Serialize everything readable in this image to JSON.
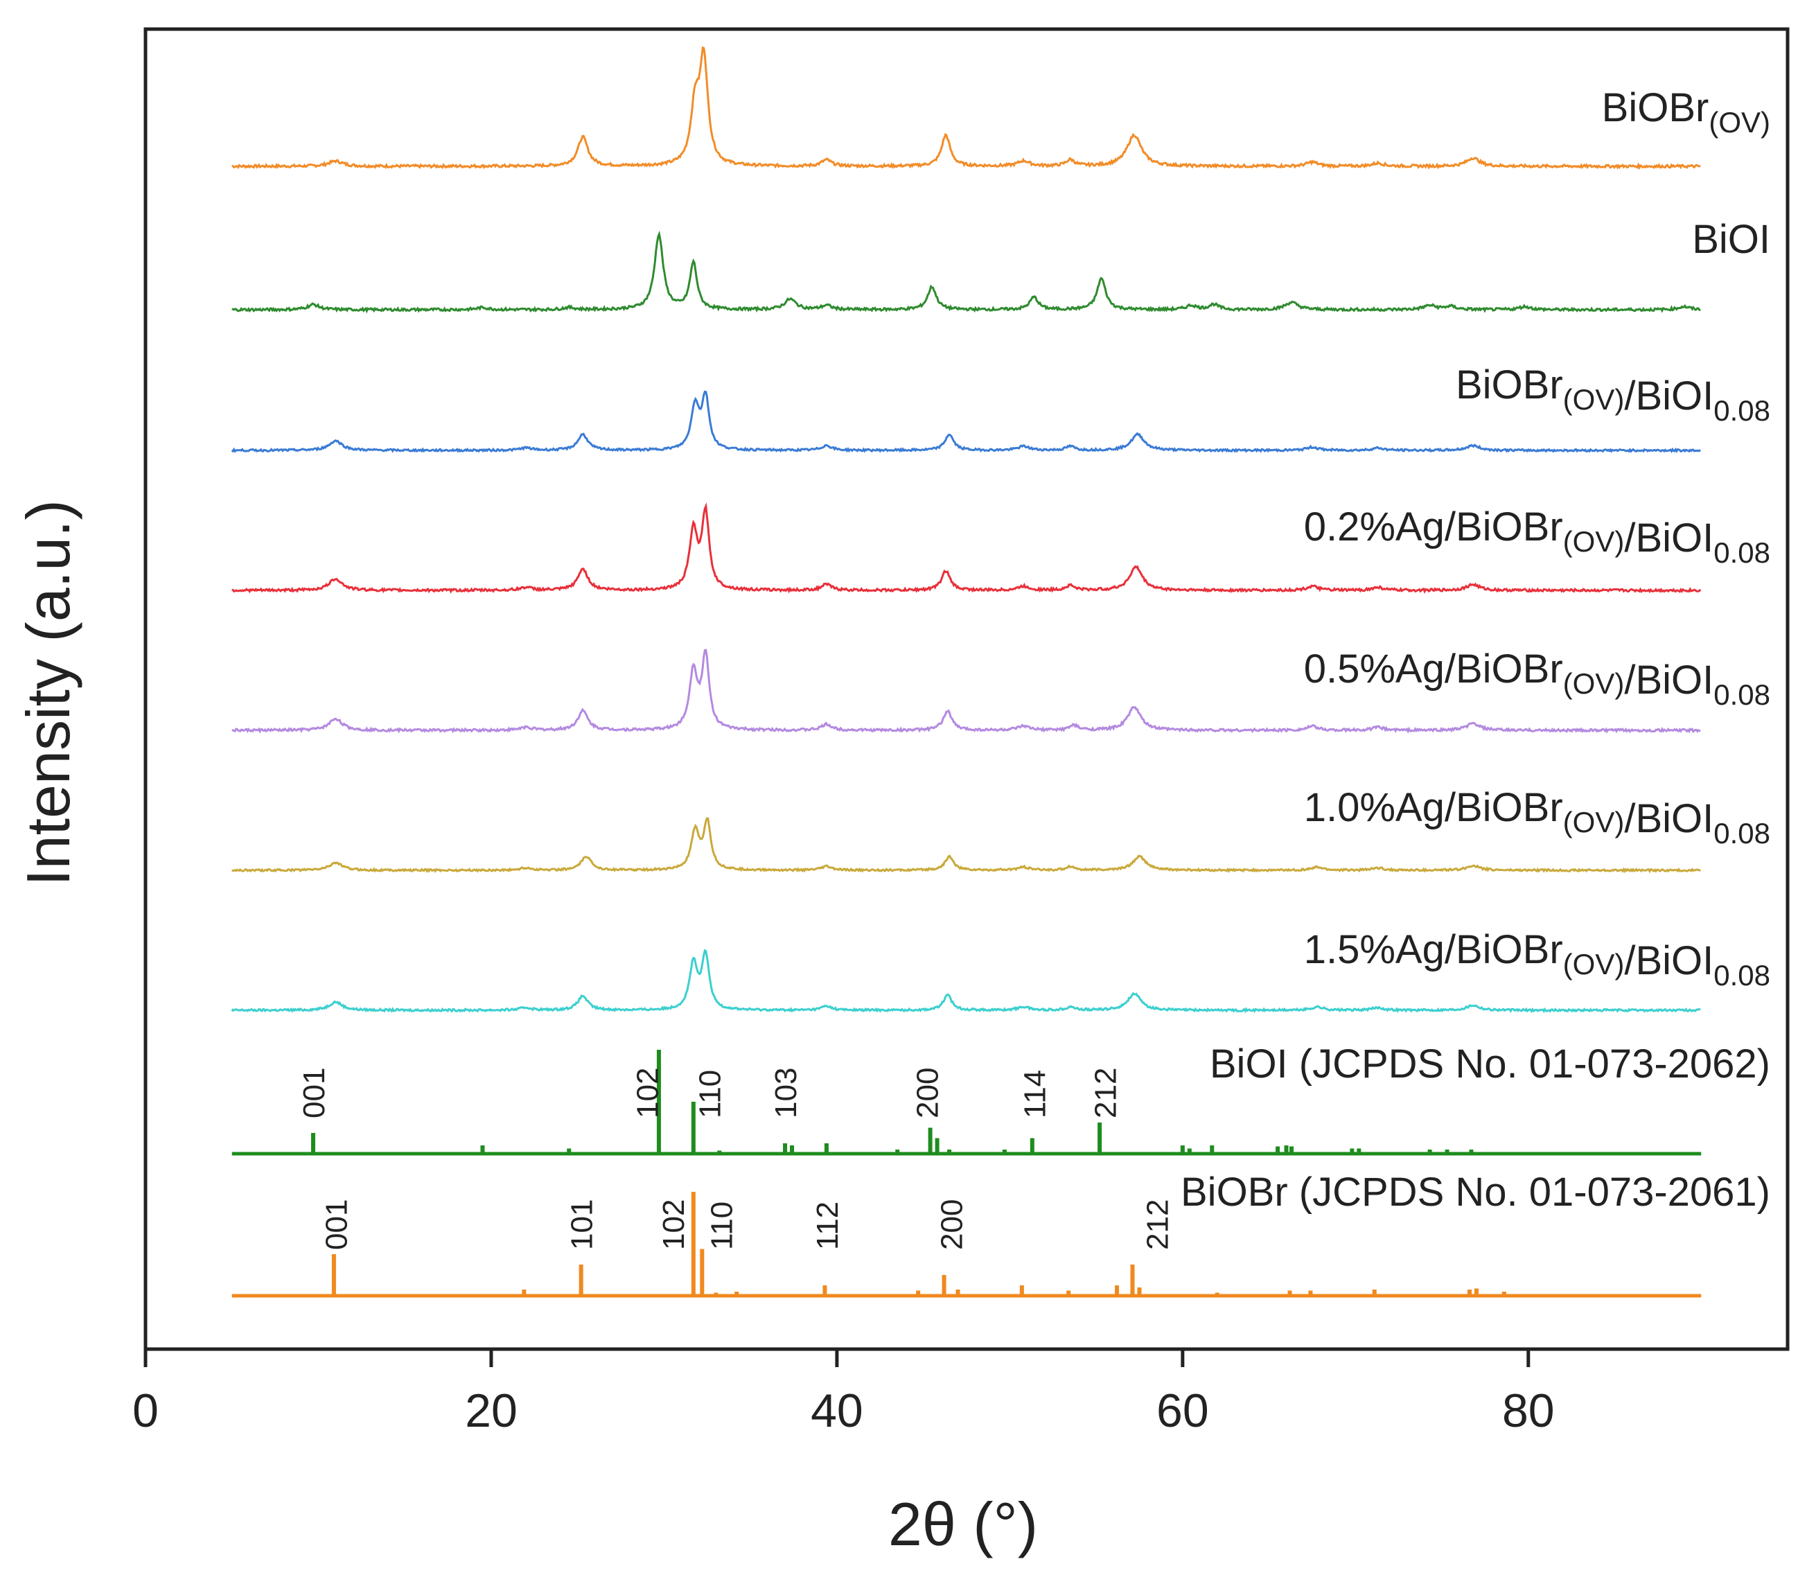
{
  "chart_data": {
    "type": "line",
    "xlabel": "2θ (°)",
    "ylabel": "Intensity (a.u.)",
    "xlim": [
      0,
      95
    ],
    "xticks": [
      0,
      20,
      40,
      60,
      80
    ],
    "series": [
      {
        "name": "BiOBr(OV)",
        "label_main": "BiOBr",
        "label_sub": "(OV)",
        "label_main2": "",
        "label_sub2": "",
        "color": "#F28C28",
        "peaks": [
          [
            11.0,
            0.05,
            0.5
          ],
          [
            25.3,
            0.28,
            0.35
          ],
          [
            31.8,
            0.55,
            0.3
          ],
          [
            32.3,
            1.0,
            0.28
          ],
          [
            39.4,
            0.06,
            0.35
          ],
          [
            46.3,
            0.3,
            0.3
          ],
          [
            50.8,
            0.05,
            0.4
          ],
          [
            53.5,
            0.06,
            0.3
          ],
          [
            57.2,
            0.3,
            0.5
          ],
          [
            67.5,
            0.04,
            0.4
          ],
          [
            71.3,
            0.03,
            0.4
          ],
          [
            76.8,
            0.08,
            0.45
          ]
        ]
      },
      {
        "name": "BiOI",
        "label_main": "BiOI",
        "label_sub": "",
        "label_main2": "",
        "label_sub2": "",
        "color": "#2E8B2E",
        "peaks": [
          [
            9.7,
            0.05,
            0.4
          ],
          [
            19.5,
            0.02,
            0.4
          ],
          [
            24.5,
            0.02,
            0.4
          ],
          [
            29.7,
            0.72,
            0.3
          ],
          [
            31.7,
            0.45,
            0.25
          ],
          [
            37.3,
            0.1,
            0.4
          ],
          [
            39.4,
            0.04,
            0.35
          ],
          [
            45.5,
            0.22,
            0.3
          ],
          [
            51.4,
            0.12,
            0.3
          ],
          [
            55.3,
            0.3,
            0.3
          ],
          [
            60.5,
            0.04,
            0.35
          ],
          [
            61.8,
            0.05,
            0.35
          ],
          [
            66.3,
            0.07,
            0.45
          ],
          [
            74.3,
            0.04,
            0.45
          ],
          [
            75.5,
            0.03,
            0.4
          ],
          [
            79.8,
            0.03,
            0.4
          ],
          [
            89.0,
            0.03,
            0.4
          ]
        ]
      },
      {
        "name": "BiOBr(OV)/BiOI0.08",
        "label_main": "BiOBr",
        "label_sub": "(OV)",
        "label_main2": "/BiOI",
        "label_sub2": "0.08",
        "color": "#3A7BD5",
        "peaks": [
          [
            11.0,
            0.12,
            0.45
          ],
          [
            22.0,
            0.03,
            0.4
          ],
          [
            25.3,
            0.2,
            0.35
          ],
          [
            31.8,
            0.55,
            0.28
          ],
          [
            32.4,
            0.65,
            0.25
          ],
          [
            39.4,
            0.06,
            0.35
          ],
          [
            46.5,
            0.2,
            0.3
          ],
          [
            50.8,
            0.05,
            0.4
          ],
          [
            53.5,
            0.05,
            0.3
          ],
          [
            57.4,
            0.2,
            0.45
          ],
          [
            67.5,
            0.04,
            0.4
          ],
          [
            71.3,
            0.03,
            0.4
          ],
          [
            76.8,
            0.06,
            0.45
          ]
        ]
      },
      {
        "name": "0.2%Ag/BiOBr(OV)/BiOI0.08",
        "label_main": "0.2%Ag/BiOBr",
        "label_sub": "(OV)",
        "label_main2": "/BiOI",
        "label_sub2": "0.08",
        "color": "#E8303A",
        "peaks": [
          [
            11.0,
            0.12,
            0.45
          ],
          [
            22.0,
            0.03,
            0.4
          ],
          [
            25.3,
            0.22,
            0.35
          ],
          [
            31.7,
            0.6,
            0.28
          ],
          [
            32.4,
            0.78,
            0.25
          ],
          [
            39.4,
            0.06,
            0.35
          ],
          [
            46.3,
            0.2,
            0.3
          ],
          [
            50.8,
            0.04,
            0.4
          ],
          [
            53.5,
            0.05,
            0.3
          ],
          [
            57.3,
            0.24,
            0.45
          ],
          [
            67.5,
            0.04,
            0.4
          ],
          [
            71.3,
            0.03,
            0.4
          ],
          [
            76.8,
            0.06,
            0.45
          ]
        ]
      },
      {
        "name": "0.5%Ag/BiOBr(OV)/BiOI0.08",
        "label_main": "0.5%Ag/BiOBr",
        "label_sub": "(OV)",
        "label_main2": "/BiOI",
        "label_sub2": "0.08",
        "color": "#B48AE0",
        "peaks": [
          [
            11.0,
            0.12,
            0.45
          ],
          [
            22.0,
            0.03,
            0.4
          ],
          [
            25.3,
            0.2,
            0.35
          ],
          [
            31.7,
            0.6,
            0.28
          ],
          [
            32.4,
            0.75,
            0.25
          ],
          [
            39.4,
            0.06,
            0.35
          ],
          [
            46.4,
            0.2,
            0.3
          ],
          [
            50.8,
            0.04,
            0.4
          ],
          [
            53.7,
            0.05,
            0.3
          ],
          [
            57.2,
            0.24,
            0.45
          ],
          [
            67.5,
            0.04,
            0.4
          ],
          [
            71.3,
            0.03,
            0.4
          ],
          [
            76.8,
            0.07,
            0.45
          ]
        ]
      },
      {
        "name": "1.0%Ag/BiOBr(OV)/BiOI0.08",
        "label_main": "1.0%Ag/BiOBr",
        "label_sub": "(OV)",
        "label_main2": "/BiOI",
        "label_sub2": "0.08",
        "color": "#C9A93A",
        "peaks": [
          [
            11.0,
            0.1,
            0.45
          ],
          [
            22.0,
            0.03,
            0.4
          ],
          [
            25.5,
            0.18,
            0.35
          ],
          [
            31.8,
            0.5,
            0.28
          ],
          [
            32.5,
            0.62,
            0.25
          ],
          [
            39.4,
            0.05,
            0.35
          ],
          [
            46.5,
            0.18,
            0.3
          ],
          [
            50.8,
            0.04,
            0.4
          ],
          [
            53.5,
            0.05,
            0.3
          ],
          [
            57.5,
            0.18,
            0.45
          ],
          [
            67.8,
            0.04,
            0.4
          ],
          [
            71.3,
            0.03,
            0.4
          ],
          [
            76.8,
            0.06,
            0.45
          ]
        ]
      },
      {
        "name": "1.5%Ag/BiOBr(OV)/BiOI0.08",
        "label_main": "1.5%Ag/BiOBr",
        "label_sub": "(OV)",
        "label_main2": "/BiOI",
        "label_sub2": "0.08",
        "color": "#3CCFCF",
        "peaks": [
          [
            11.0,
            0.1,
            0.45
          ],
          [
            22.0,
            0.03,
            0.4
          ],
          [
            25.3,
            0.17,
            0.35
          ],
          [
            31.7,
            0.55,
            0.28
          ],
          [
            32.4,
            0.65,
            0.25
          ],
          [
            39.4,
            0.05,
            0.35
          ],
          [
            46.4,
            0.18,
            0.3
          ],
          [
            50.8,
            0.04,
            0.4
          ],
          [
            53.5,
            0.04,
            0.3
          ],
          [
            57.2,
            0.2,
            0.45
          ],
          [
            67.8,
            0.04,
            0.4
          ],
          [
            71.3,
            0.03,
            0.4
          ],
          [
            76.8,
            0.06,
            0.45
          ]
        ]
      }
    ],
    "references": [
      {
        "name": "BiOI (JCPDS No. 01-073-2062)",
        "color": "#1E8C1E",
        "lines": [
          [
            9.7,
            0.2
          ],
          [
            19.5,
            0.08
          ],
          [
            24.5,
            0.05
          ],
          [
            29.7,
            1.0
          ],
          [
            31.7,
            0.5
          ],
          [
            33.2,
            0.03
          ],
          [
            37.0,
            0.1
          ],
          [
            37.4,
            0.08
          ],
          [
            39.4,
            0.1
          ],
          [
            43.5,
            0.04
          ],
          [
            45.4,
            0.25
          ],
          [
            45.8,
            0.15
          ],
          [
            46.5,
            0.04
          ],
          [
            49.7,
            0.04
          ],
          [
            51.3,
            0.15
          ],
          [
            55.2,
            0.3
          ],
          [
            60.0,
            0.08
          ],
          [
            60.4,
            0.05
          ],
          [
            61.7,
            0.08
          ],
          [
            65.5,
            0.07
          ],
          [
            66.0,
            0.08
          ],
          [
            66.3,
            0.07
          ],
          [
            69.8,
            0.05
          ],
          [
            70.2,
            0.05
          ],
          [
            74.3,
            0.04
          ],
          [
            75.3,
            0.04
          ],
          [
            76.7,
            0.04
          ]
        ],
        "peak_labels": [
          {
            "x": 9.7,
            "text": "001"
          },
          {
            "x": 29.0,
            "text": "102"
          },
          {
            "x": 32.6,
            "text": "110"
          },
          {
            "x": 37.0,
            "text": "103"
          },
          {
            "x": 45.2,
            "text": "200"
          },
          {
            "x": 51.4,
            "text": "114"
          },
          {
            "x": 55.5,
            "text": "212"
          }
        ]
      },
      {
        "name": "BiOBr (JCPDS No. 01-073-2061)",
        "color": "#F0891E",
        "lines": [
          [
            10.9,
            0.4
          ],
          [
            21.9,
            0.06
          ],
          [
            25.2,
            0.3
          ],
          [
            31.7,
            1.0
          ],
          [
            32.2,
            0.45
          ],
          [
            33.0,
            0.03
          ],
          [
            34.2,
            0.04
          ],
          [
            39.3,
            0.1
          ],
          [
            44.7,
            0.05
          ],
          [
            46.2,
            0.2
          ],
          [
            47.0,
            0.06
          ],
          [
            50.7,
            0.1
          ],
          [
            53.4,
            0.05
          ],
          [
            56.2,
            0.1
          ],
          [
            57.1,
            0.3
          ],
          [
            57.5,
            0.08
          ],
          [
            62.0,
            0.03
          ],
          [
            66.2,
            0.05
          ],
          [
            67.4,
            0.05
          ],
          [
            71.1,
            0.06
          ],
          [
            76.6,
            0.06
          ],
          [
            77.0,
            0.07
          ],
          [
            78.6,
            0.04
          ]
        ],
        "peak_labels": [
          {
            "x": 11.0,
            "text": "001"
          },
          {
            "x": 25.2,
            "text": "101"
          },
          {
            "x": 30.5,
            "text": "102"
          },
          {
            "x": 33.3,
            "text": "110"
          },
          {
            "x": 39.4,
            "text": "112"
          },
          {
            "x": 46.6,
            "text": "200"
          },
          {
            "x": 58.5,
            "text": "212"
          }
        ]
      }
    ]
  }
}
